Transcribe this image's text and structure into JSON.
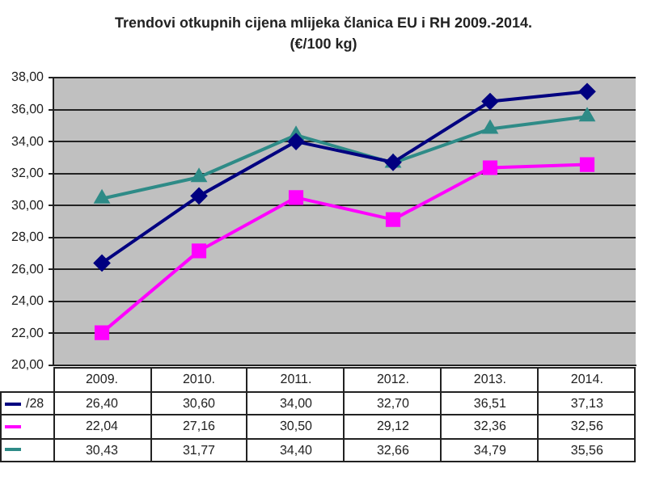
{
  "chart_data": {
    "type": "line",
    "title": "Trendovi otkupnih cijena mlijeka članica EU i RH 2009.-2014.",
    "subtitle": "(€/100 kg)",
    "categories": [
      "2009.",
      "2010.",
      "2011.",
      "2012.",
      "2013.",
      "2014."
    ],
    "ylim": [
      20,
      38
    ],
    "yticks": [
      {
        "value": 20,
        "label": "20,00"
      },
      {
        "value": 22,
        "label": "22,00"
      },
      {
        "value": 24,
        "label": "24,00"
      },
      {
        "value": 26,
        "label": "26,00"
      },
      {
        "value": 28,
        "label": "28,00"
      },
      {
        "value": 30,
        "label": "30,00"
      },
      {
        "value": 32,
        "label": "32,00"
      },
      {
        "value": 34,
        "label": "34,00"
      },
      {
        "value": 36,
        "label": "36,00"
      },
      {
        "value": 38,
        "label": "38,00"
      }
    ],
    "grid": "y",
    "series": [
      {
        "name": "/28",
        "color": "#000080",
        "marker": "diamond",
        "values": [
          26.4,
          30.6,
          34.0,
          32.7,
          36.51,
          37.13
        ],
        "value_labels": [
          "26,40",
          "30,60",
          "34,00",
          "32,70",
          "36,51",
          "37,13"
        ]
      },
      {
        "color": "#ff00ff",
        "marker": "square",
        "values": [
          22.04,
          27.16,
          30.5,
          29.12,
          32.36,
          32.56
        ],
        "value_labels": [
          "22,04",
          "27,16",
          "30,50",
          "29,12",
          "32,36",
          "32,56"
        ]
      },
      {
        "color": "#2e8b87",
        "marker": "triangle",
        "values": [
          30.43,
          31.77,
          34.4,
          32.66,
          34.79,
          35.56
        ],
        "value_labels": [
          "30,43",
          "31,77",
          "34,40",
          "32,66",
          "34,79",
          "35,56"
        ]
      }
    ]
  }
}
